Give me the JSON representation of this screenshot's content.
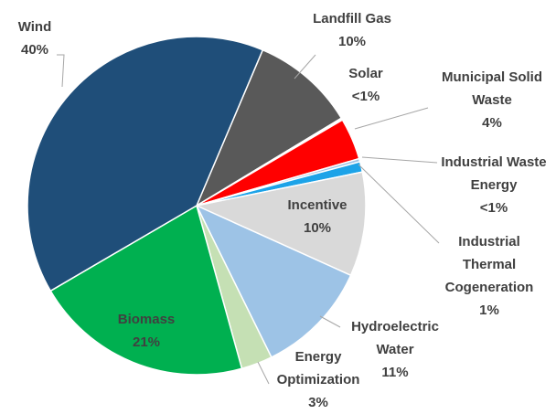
{
  "chart_data": {
    "type": "pie",
    "categories": [
      "Wind",
      "Landfill Gas",
      "Solar",
      "Municipal Solid Waste",
      "Industrial Waste Energy",
      "Industrial Thermal Cogeneration",
      "Incentive",
      "Hydroelectric Water",
      "Energy Optimization",
      "Biomass"
    ],
    "values": [
      40,
      10,
      0.2,
      4,
      0.3,
      1,
      10,
      11,
      3,
      21
    ],
    "value_labels": [
      "40%",
      "10%",
      "<1%",
      "4%",
      "<1%",
      "1%",
      "10%",
      "11%",
      "3%",
      "21%"
    ],
    "colors": [
      "#1f4e79",
      "#595959",
      "#ffffff",
      "#ff0000",
      "#9dc3e6",
      "#1ca3e8",
      "#d9d9d9",
      "#9dc3e6",
      "#c5e0b4",
      "#00b050"
    ]
  }
}
